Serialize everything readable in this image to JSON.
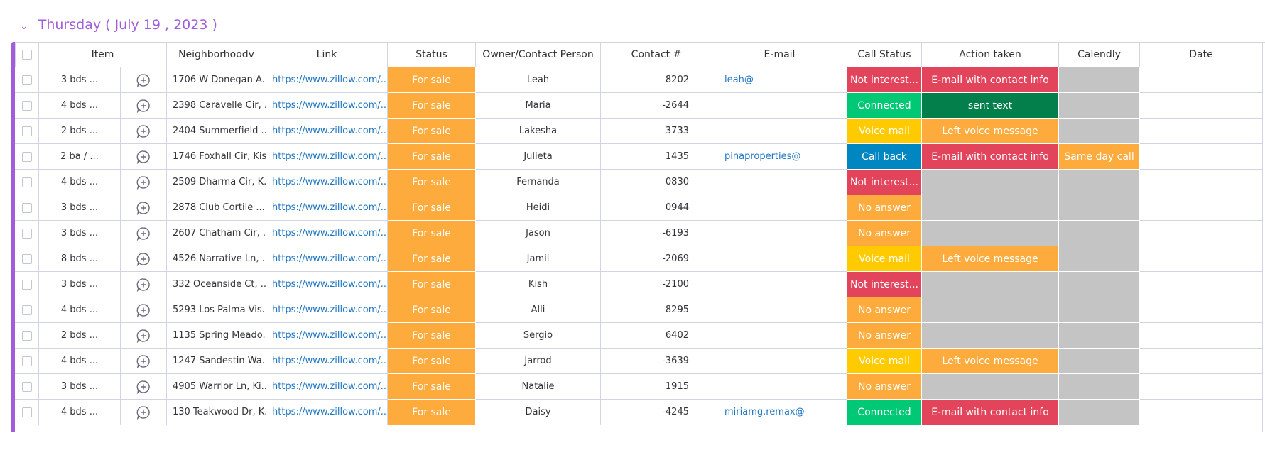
{
  "group_title": "Thursday ( July 19 , 2023 )",
  "columns": [
    "Item",
    "Neighborhoodv",
    "Link",
    "Status",
    "Owner/Contact Person",
    "Contact #",
    "E-mail",
    "Call Status",
    "Action taken",
    "Calendly",
    "Date"
  ],
  "rows": [
    {
      "item": "3 bds ...",
      "neighborhood": "1706 W Donegan A...",
      "link": "https://www.zillow.com/...",
      "status": {
        "text": "For sale",
        "color": "#fdab3d"
      },
      "owner": "Leah",
      "contact": "8202",
      "email": "leah@",
      "call_status": {
        "text": "Not interest...",
        "color": "#e2445c"
      },
      "action": {
        "text": "E-mail with contact info",
        "color": "#e2445c"
      }
    },
    {
      "item": "4 bds ...",
      "neighborhood": "2398 Caravelle Cir, ...",
      "link": "https://www.zillow.com/...",
      "status": {
        "text": "For sale",
        "color": "#fdab3d"
      },
      "owner": "Maria",
      "contact": "-2644",
      "call_status": {
        "text": "Connected",
        "color": "#00c875"
      },
      "action": {
        "text": "sent text",
        "color": "#037f4c"
      }
    },
    {
      "item": "2 bds ...",
      "neighborhood": "2404 Summerfield ...",
      "link": "https://www.zillow.com/...",
      "status": {
        "text": "For sale",
        "color": "#fdab3d"
      },
      "owner": "Lakesha",
      "contact": "3733",
      "call_status": {
        "text": "Voice mail",
        "color": "#ffcb00"
      },
      "action": {
        "text": "Left voice message",
        "color": "#fdab3d"
      }
    },
    {
      "item": "2 ba / ...",
      "neighborhood": "1746 Foxhall Cir, Kis...",
      "link": "https://www.zillow.com/...",
      "status": {
        "text": "For sale",
        "color": "#fdab3d"
      },
      "owner": "Julieta",
      "contact": "1435",
      "email": "pinaproperties@",
      "call_status": {
        "text": "Call back",
        "color": "#0086c0"
      },
      "action": {
        "text": "E-mail with contact info",
        "color": "#e2445c"
      },
      "calendly": {
        "text": "Same day call",
        "color": "#fdab3d"
      }
    },
    {
      "item": "4 bds ...",
      "neighborhood": "2509 Dharma Cir, K...",
      "link": "https://www.zillow.com/...",
      "status": {
        "text": "For sale",
        "color": "#fdab3d"
      },
      "owner": "Fernanda",
      "contact": "0830",
      "call_status": {
        "text": "Not interest...",
        "color": "#e2445c"
      }
    },
    {
      "item": "3 bds ...",
      "neighborhood": "2878 Club Cortile ...",
      "link": "https://www.zillow.com/...",
      "status": {
        "text": "For sale",
        "color": "#fdab3d"
      },
      "owner": "Heidi",
      "contact": "0944",
      "call_status": {
        "text": "No answer",
        "color": "#fdab3d"
      }
    },
    {
      "item": "3 bds ...",
      "neighborhood": "2607 Chatham Cir, ...",
      "link": "https://www.zillow.com/...",
      "status": {
        "text": "For sale",
        "color": "#fdab3d"
      },
      "owner": "Jason",
      "contact": "-6193",
      "call_status": {
        "text": "No answer",
        "color": "#fdab3d"
      }
    },
    {
      "item": "8 bds ...",
      "neighborhood": "4526 Narrative Ln, ...",
      "link": "https://www.zillow.com/...",
      "status": {
        "text": "For sale",
        "color": "#fdab3d"
      },
      "owner": "Jamil",
      "contact": "-2069",
      "call_status": {
        "text": "Voice mail",
        "color": "#ffcb00"
      },
      "action": {
        "text": "Left voice message",
        "color": "#fdab3d"
      }
    },
    {
      "item": "3 bds ...",
      "neighborhood": "332 Oceanside Ct, ...",
      "link": "https://www.zillow.com/...",
      "status": {
        "text": "For sale",
        "color": "#fdab3d"
      },
      "owner": "Kish",
      "contact": "-2100",
      "call_status": {
        "text": "Not interest...",
        "color": "#e2445c"
      }
    },
    {
      "item": "4 bds ...",
      "neighborhood": "5293 Los Palma Vis...",
      "link": "https://www.zillow.com/...",
      "status": {
        "text": "For sale",
        "color": "#fdab3d"
      },
      "owner": "Alli",
      "contact": "8295",
      "call_status": {
        "text": "No answer",
        "color": "#fdab3d"
      }
    },
    {
      "item": "2 bds ...",
      "neighborhood": "1135 Spring Meado...",
      "link": "https://www.zillow.com/...",
      "status": {
        "text": "For sale",
        "color": "#fdab3d"
      },
      "owner": "Sergio",
      "contact": "6402",
      "call_status": {
        "text": "No answer",
        "color": "#fdab3d"
      }
    },
    {
      "item": "4 bds ...",
      "neighborhood": "1247 Sandestin Wa...",
      "link": "https://www.zillow.com/...",
      "status": {
        "text": "For sale",
        "color": "#fdab3d"
      },
      "owner": "Jarrod",
      "contact": "-3639",
      "call_status": {
        "text": "Voice mail",
        "color": "#ffcb00"
      },
      "action": {
        "text": "Left voice message",
        "color": "#fdab3d"
      }
    },
    {
      "item": "3 bds ...",
      "neighborhood": "4905 Warrior Ln, Ki...",
      "link": "https://www.zillow.com/...",
      "status": {
        "text": "For sale",
        "color": "#fdab3d"
      },
      "owner": "Natalie",
      "contact": "1915",
      "call_status": {
        "text": "No answer",
        "color": "#fdab3d"
      }
    },
    {
      "item": "4 bds ...",
      "neighborhood": "130 Teakwood Dr, K...",
      "link": "https://www.zillow.com/...",
      "status": {
        "text": "For sale",
        "color": "#fdab3d"
      },
      "owner": "Daisy",
      "contact": "-4245",
      "email": "miriamg.remax@",
      "call_status": {
        "text": "Connected",
        "color": "#00c875"
      },
      "action": {
        "text": "E-mail with contact info",
        "color": "#e2445c"
      }
    }
  ]
}
